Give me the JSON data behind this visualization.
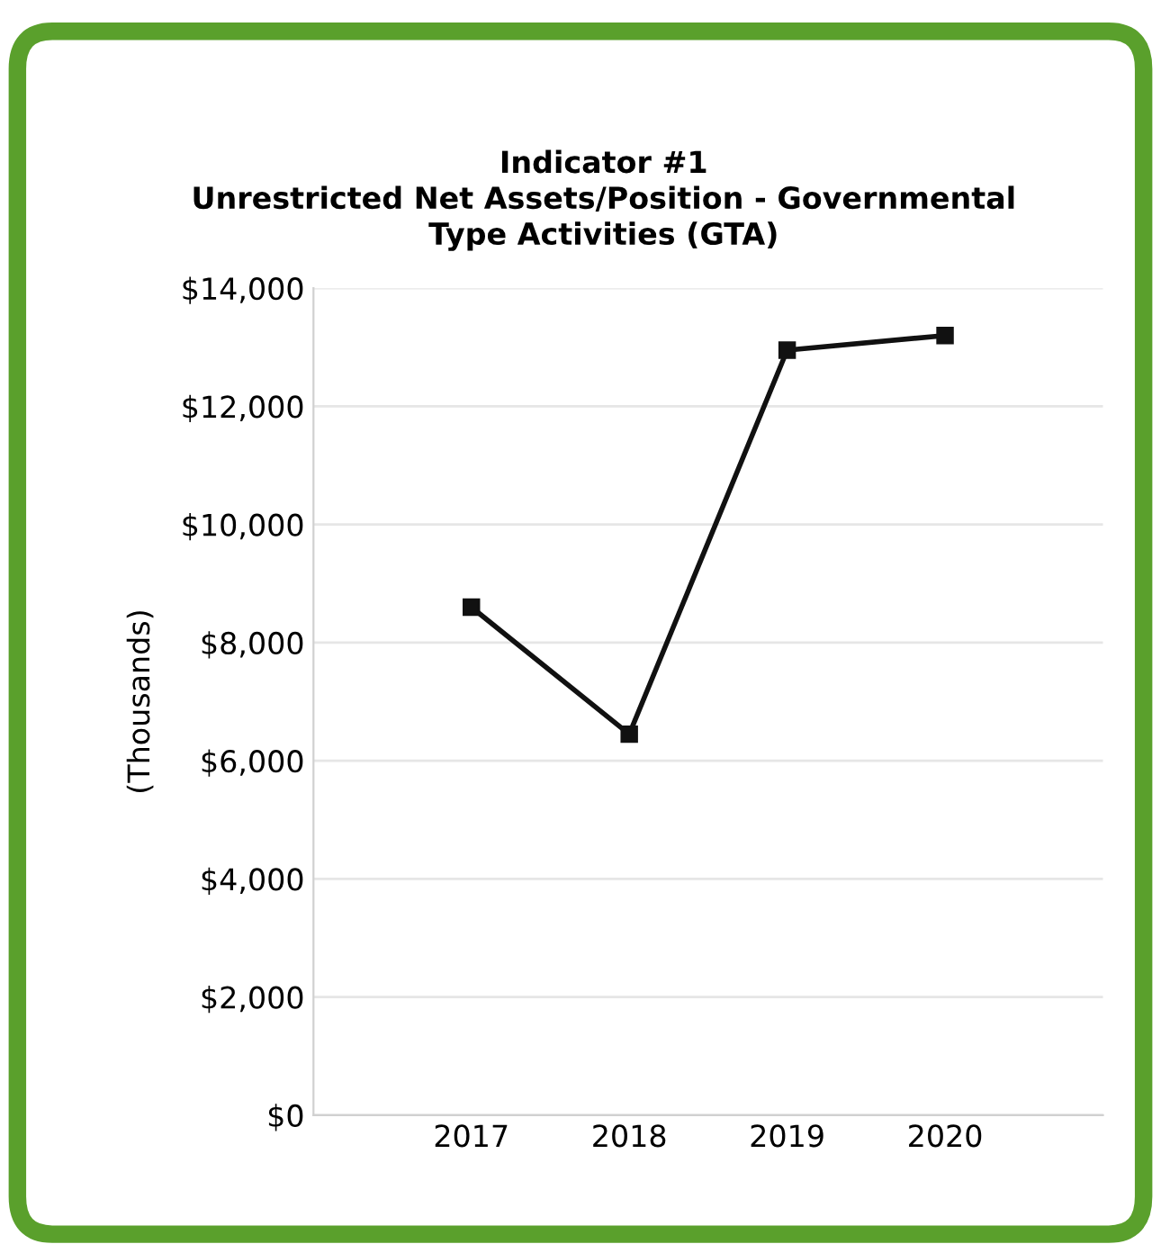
{
  "chart_data": {
    "type": "line",
    "title": "Indicator #1\nUnrestricted Net Assets/Position - Governmental\nType Activities (GTA)",
    "ylabel": "(Thousands)",
    "categories": [
      "2017",
      "2018",
      "2019",
      "2020"
    ],
    "series": [
      {
        "color": "#111111",
        "values": [
          8600,
          6450,
          12950,
          13200
        ]
      }
    ],
    "ylim": [
      0,
      14000
    ],
    "yticks": [
      {
        "value": 0,
        "label": "$0"
      },
      {
        "value": 2000,
        "label": "$2,000"
      },
      {
        "value": 4000,
        "label": "$4,000"
      },
      {
        "value": 6000,
        "label": "$6,000"
      },
      {
        "value": 8000,
        "label": "$8,000"
      },
      {
        "value": 10000,
        "label": "$10,000"
      },
      {
        "value": 12000,
        "label": "$12,000"
      },
      {
        "value": 14000,
        "label": "$14,000"
      }
    ],
    "grid": "y",
    "marker": "square",
    "line_style": "solid"
  }
}
